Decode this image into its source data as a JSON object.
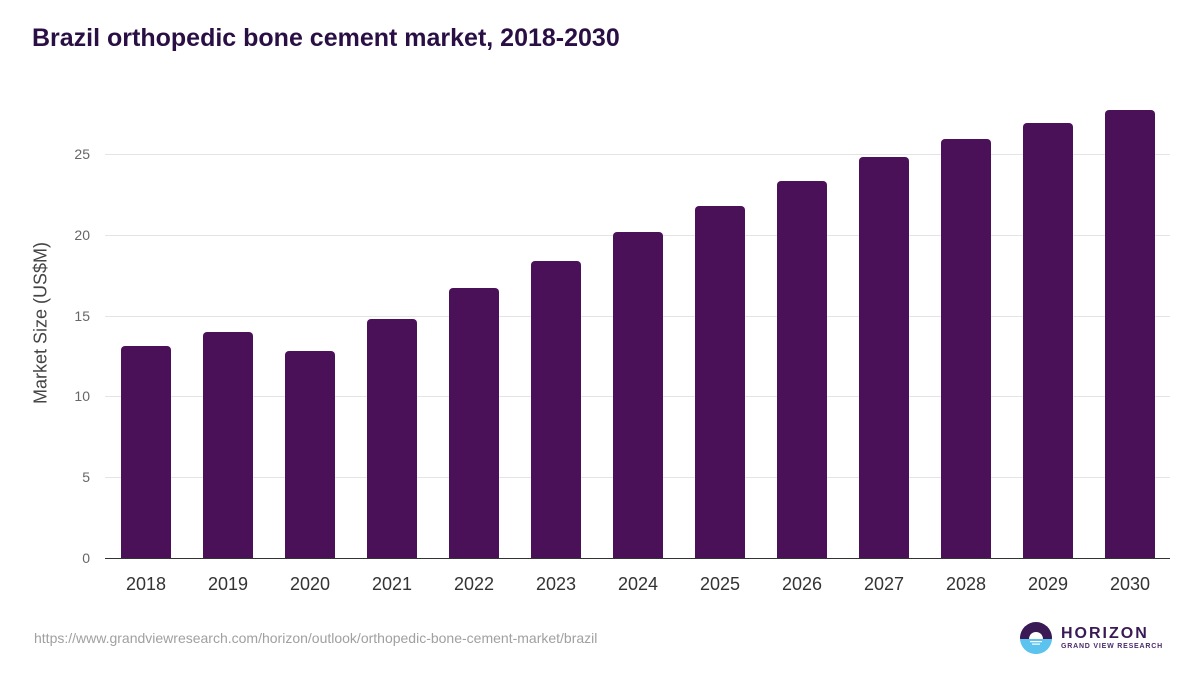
{
  "title": "Brazil orthopedic bone cement market, 2018-2030",
  "source_url": "https://www.grandviewresearch.com/horizon/outlook/orthopedic-bone-cement-market/brazil",
  "logo": {
    "name": "HORIZON",
    "subtitle": "GRAND VIEW RESEARCH",
    "icon": "horizon-sun-icon"
  },
  "colors": {
    "bar": "#4b1158",
    "title": "#2a0f45",
    "grid": "#e4e4e4"
  },
  "chart_data": {
    "type": "bar",
    "title": "Brazil orthopedic bone cement market, 2018-2030",
    "xlabel": "",
    "ylabel": "Market Size (US$M)",
    "categories": [
      "2018",
      "2019",
      "2020",
      "2021",
      "2022",
      "2023",
      "2024",
      "2025",
      "2026",
      "2027",
      "2028",
      "2029",
      "2030"
    ],
    "values": [
      13.1,
      14.0,
      12.8,
      14.8,
      16.7,
      18.4,
      20.2,
      21.8,
      23.3,
      24.8,
      25.9,
      26.9,
      27.7
    ],
    "yticks": [
      "0",
      "5",
      "10",
      "15",
      "20",
      "25"
    ],
    "ylim": [
      0,
      28
    ],
    "grid": true,
    "legend": "none"
  }
}
